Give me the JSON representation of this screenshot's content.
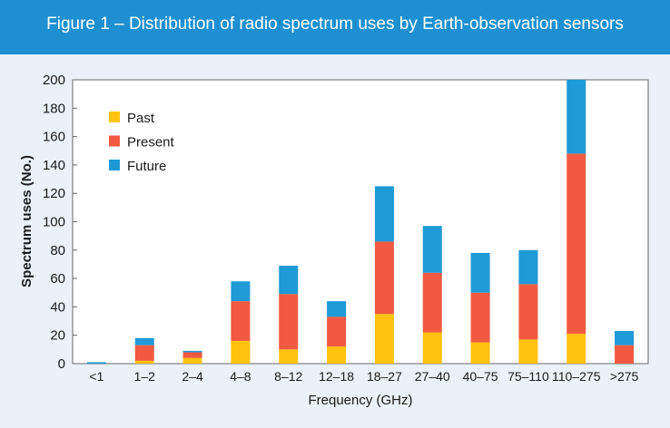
{
  "header": {
    "title": "Figure 1 – Distribution of radio spectrum uses by Earth-observation sensors"
  },
  "colors": {
    "header_bg": "#1e90d1",
    "page_bg": "#eaf1f8",
    "plot_bg": "#ffffff",
    "past": "#ffc20e",
    "present": "#f15a40",
    "future": "#1e9ad6"
  },
  "chart_data": {
    "type": "bar",
    "stacked": true,
    "xlabel": "Frequency (GHz)",
    "ylabel": "Spectrum uses (No.)",
    "ylim": [
      0,
      200
    ],
    "yticks": [
      0,
      20,
      40,
      60,
      80,
      100,
      120,
      140,
      160,
      180,
      200
    ],
    "grid": false,
    "legend_position": "top-left",
    "categories": [
      "<1",
      "1–2",
      "2–4",
      "4–8",
      "8–12",
      "12–18",
      "18–27",
      "27–40",
      "40–75",
      "75–110",
      "110–275",
      ">275"
    ],
    "series": [
      {
        "name": "Past",
        "color": "#ffc20e",
        "values": [
          0,
          2,
          4,
          16,
          10,
          12,
          35,
          22,
          15,
          17,
          21,
          0
        ]
      },
      {
        "name": "Present",
        "color": "#f15a40",
        "values": [
          0,
          11,
          4,
          28,
          39,
          21,
          51,
          42,
          35,
          39,
          127,
          13
        ]
      },
      {
        "name": "Future",
        "color": "#1e9ad6",
        "values": [
          1,
          5,
          1,
          14,
          20,
          11,
          39,
          33,
          28,
          24,
          52,
          10
        ]
      }
    ]
  }
}
